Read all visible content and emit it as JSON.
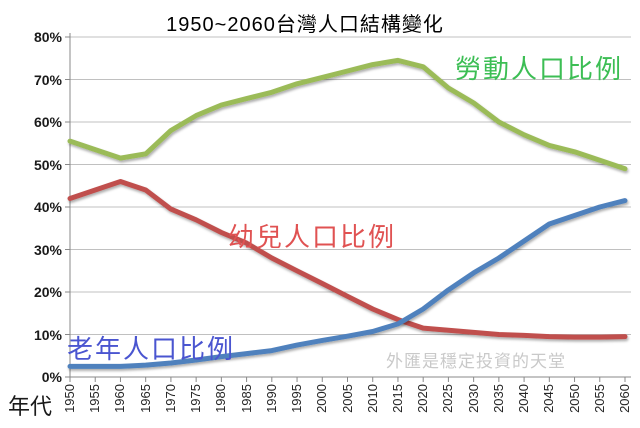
{
  "watermark": "外匯是穩定投資的天堂",
  "colors": {
    "gridline": "#c0c0c0",
    "axis": "#898989",
    "tick_text": "#262626",
    "watermark": "#c9c9c9",
    "labor_line": "#9BBB59",
    "children_line": "#C0504D",
    "elderly_line": "#4F81BD"
  },
  "chart_data": {
    "type": "line",
    "title": "1950~2060台灣人口結構變化",
    "x_label": "年代",
    "ylabel": "",
    "ylim": [
      0,
      80
    ],
    "grid": true,
    "legend_position": "inline-labels",
    "y_ticks": [
      "0%",
      "10%",
      "20%",
      "30%",
      "40%",
      "50%",
      "60%",
      "70%",
      "80%"
    ],
    "x": [
      1950,
      1955,
      1960,
      1965,
      1970,
      1975,
      1980,
      1985,
      1990,
      1995,
      2000,
      2005,
      2010,
      2015,
      2020,
      2025,
      2030,
      2035,
      2040,
      2045,
      2050,
      2055,
      2060
    ],
    "series": [
      {
        "name": "勞動人口比例",
        "color": "#9BBB59",
        "label_color": "#3cbe54",
        "values": [
          55.5,
          53.5,
          51.5,
          52.5,
          58,
          61.5,
          64,
          65.5,
          67,
          69,
          70.5,
          72,
          73.5,
          74.5,
          73,
          68,
          64.5,
          60,
          57,
          54.5,
          53,
          51,
          49
        ]
      },
      {
        "name": "幼兒人口比例",
        "color": "#C0504D",
        "label_color": "#e05252",
        "values": [
          42,
          44,
          46,
          44,
          39.5,
          37,
          34,
          31.5,
          28,
          25,
          22,
          19,
          16,
          13.5,
          11.5,
          11,
          10.5,
          10,
          9.8,
          9.5,
          9.4,
          9.4,
          9.5
        ]
      },
      {
        "name": "老年人口比例",
        "color": "#4F81BD",
        "label_color": "#4a55d0",
        "values": [
          2.5,
          2.5,
          2.5,
          2.8,
          3.3,
          4,
          4.8,
          5.5,
          6.2,
          7.5,
          8.6,
          9.6,
          10.7,
          12.5,
          16,
          20.5,
          24.5,
          28,
          32,
          36,
          38,
          40,
          41.5
        ]
      }
    ]
  }
}
